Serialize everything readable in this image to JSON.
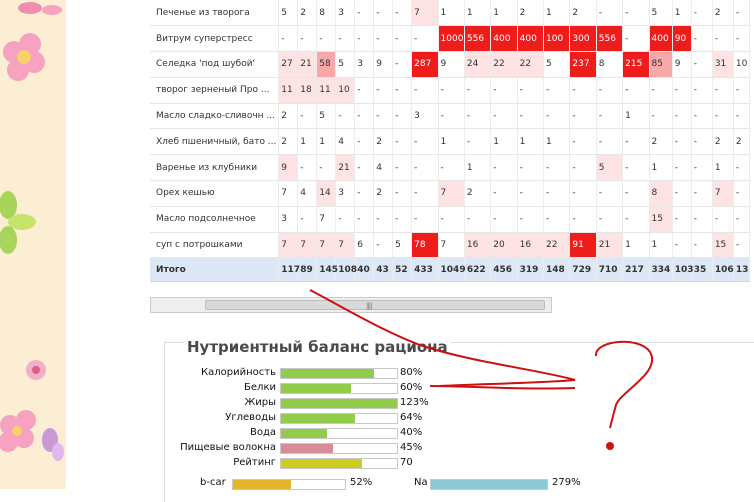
{
  "table": {
    "rows": [
      {
        "name": "Печенье из творога",
        "cells": [
          "5",
          "2",
          "8",
          "3",
          "-",
          "-",
          "-",
          "7",
          "1",
          "1",
          "1",
          "2",
          "1",
          "2",
          "-",
          "-",
          "5",
          "1",
          "-",
          "2",
          "-"
        ],
        "heat": [
          0,
          0,
          0,
          0,
          0,
          0,
          0,
          1,
          0,
          0,
          0,
          0,
          0,
          0,
          0,
          0,
          0,
          0,
          0,
          0,
          0
        ]
      },
      {
        "name": "Витрум суперстресс",
        "cells": [
          "-",
          "-",
          "-",
          "-",
          "-",
          "-",
          "-",
          "-",
          "1000",
          "556",
          "400",
          "400",
          "100",
          "300",
          "556",
          "-",
          "400",
          "90",
          "-",
          "-",
          "-"
        ],
        "heat": [
          0,
          0,
          0,
          0,
          0,
          0,
          0,
          0,
          3,
          3,
          3,
          3,
          3,
          3,
          3,
          0,
          3,
          3,
          0,
          0,
          0
        ]
      },
      {
        "name": "Селедка 'под шубой'",
        "cells": [
          "27",
          "21",
          "58",
          "5",
          "3",
          "9",
          "-",
          "287",
          "9",
          "24",
          "22",
          "22",
          "5",
          "237",
          "8",
          "215",
          "85",
          "9",
          "-",
          "31",
          "10"
        ],
        "heat": [
          1,
          1,
          2,
          0,
          0,
          0,
          0,
          3,
          0,
          1,
          1,
          1,
          0,
          3,
          0,
          3,
          2,
          0,
          0,
          1,
          0
        ]
      },
      {
        "name": "творог зерненый Про ...",
        "cells": [
          "11",
          "18",
          "11",
          "10",
          "-",
          "-",
          "-",
          "-",
          "-",
          "-",
          "-",
          "-",
          "-",
          "-",
          "-",
          "-",
          "-",
          "-",
          "-",
          "-",
          "-"
        ],
        "heat": [
          1,
          1,
          1,
          1,
          0,
          0,
          0,
          0,
          0,
          0,
          0,
          0,
          0,
          0,
          0,
          0,
          0,
          0,
          0,
          0,
          0
        ]
      },
      {
        "name": "Масло сладко-сливочн ...",
        "cells": [
          "2",
          "-",
          "5",
          "-",
          "-",
          "-",
          "-",
          "3",
          "-",
          "-",
          "-",
          "-",
          "-",
          "-",
          "-",
          "1",
          "-",
          "-",
          "-",
          "-",
          "-"
        ],
        "heat": [
          0,
          0,
          0,
          0,
          0,
          0,
          0,
          0,
          0,
          0,
          0,
          0,
          0,
          0,
          0,
          0,
          0,
          0,
          0,
          0,
          0
        ]
      },
      {
        "name": "Хлеб пшеничный, бато ...",
        "cells": [
          "2",
          "1",
          "1",
          "4",
          "-",
          "2",
          "-",
          "-",
          "1",
          "-",
          "1",
          "1",
          "1",
          "-",
          "-",
          "-",
          "2",
          "-",
          "-",
          "2",
          "2"
        ],
        "heat": [
          0,
          0,
          0,
          0,
          0,
          0,
          0,
          0,
          0,
          0,
          0,
          0,
          0,
          0,
          0,
          0,
          0,
          0,
          0,
          0,
          0
        ]
      },
      {
        "name": "Варенье из клубники",
        "cells": [
          "9",
          "-",
          "-",
          "21",
          "-",
          "4",
          "-",
          "-",
          "-",
          "1",
          "-",
          "-",
          "-",
          "-",
          "5",
          "-",
          "1",
          "-",
          "-",
          "1",
          "-"
        ],
        "heat": [
          1,
          0,
          0,
          1,
          0,
          0,
          0,
          0,
          0,
          0,
          0,
          0,
          0,
          0,
          1,
          0,
          0,
          0,
          0,
          0,
          0
        ]
      },
      {
        "name": "Орех кешью",
        "cells": [
          "7",
          "4",
          "14",
          "3",
          "-",
          "2",
          "-",
          "-",
          "7",
          "2",
          "-",
          "-",
          "-",
          "-",
          "-",
          "-",
          "8",
          "-",
          "-",
          "7",
          "-"
        ],
        "heat": [
          0,
          0,
          1,
          0,
          0,
          0,
          0,
          0,
          1,
          0,
          0,
          0,
          0,
          0,
          0,
          0,
          1,
          0,
          0,
          1,
          0
        ]
      },
      {
        "name": "Масло подсолнечное",
        "cells": [
          "3",
          "-",
          "7",
          "-",
          "-",
          "-",
          "-",
          "-",
          "-",
          "-",
          "-",
          "-",
          "-",
          "-",
          "-",
          "-",
          "15",
          "-",
          "-",
          "-",
          "-"
        ],
        "heat": [
          0,
          0,
          0,
          0,
          0,
          0,
          0,
          0,
          0,
          0,
          0,
          0,
          0,
          0,
          0,
          0,
          1,
          0,
          0,
          0,
          0
        ]
      },
      {
        "name": "суп с потрошками",
        "cells": [
          "7",
          "7",
          "7",
          "7",
          "6",
          "-",
          "5",
          "78",
          "7",
          "16",
          "20",
          "16",
          "22",
          "91",
          "21",
          "1",
          "1",
          "-",
          "-",
          "15",
          "-"
        ],
        "heat": [
          1,
          1,
          1,
          1,
          0,
          0,
          0,
          3,
          0,
          1,
          1,
          1,
          1,
          3,
          1,
          0,
          0,
          0,
          0,
          1,
          0
        ]
      }
    ],
    "total": {
      "name": "Итого",
      "cells": [
        "117",
        "89",
        "145",
        "108",
        "40",
        "43",
        "52",
        "433",
        "1049",
        "622",
        "456",
        "319",
        "148",
        "729",
        "710",
        "217",
        "334",
        "103",
        "35",
        "106",
        "13"
      ]
    }
  },
  "nutrients": {
    "title": "Нутриентный баланс рациона",
    "items": [
      {
        "label": "Калорийность",
        "value": "80%",
        "level": 0.8,
        "color": "#92cc4a"
      },
      {
        "label": "Белки",
        "value": "60%",
        "level": 0.6,
        "color": "#92cc4a"
      },
      {
        "label": "Жиры",
        "value": "123%",
        "level": 1.0,
        "color": "#92cc4a"
      },
      {
        "label": "Углеводы",
        "value": "64%",
        "level": 0.64,
        "color": "#92cc4a"
      },
      {
        "label": "Вода",
        "value": "40%",
        "level": 0.4,
        "color": "#92cc4a"
      },
      {
        "label": "Пищевые волокна",
        "value": "45%",
        "level": 0.45,
        "color": "#d98c98"
      },
      {
        "label": "Рейтинг",
        "value": "70",
        "level": 0.7,
        "color": "#cccc22"
      }
    ],
    "minerals": [
      {
        "label": "b-car",
        "value": "52%",
        "level": 0.52,
        "color": "#e3b62a"
      },
      {
        "label": "Na",
        "value": "279%",
        "level": 1.0,
        "color": "#8ccad6"
      }
    ]
  },
  "colors": {
    "heat_1": "#fde3e3",
    "heat_2": "#f7a8a8",
    "heat_3": "#ef1c1c",
    "annotation": "#cc1111"
  }
}
